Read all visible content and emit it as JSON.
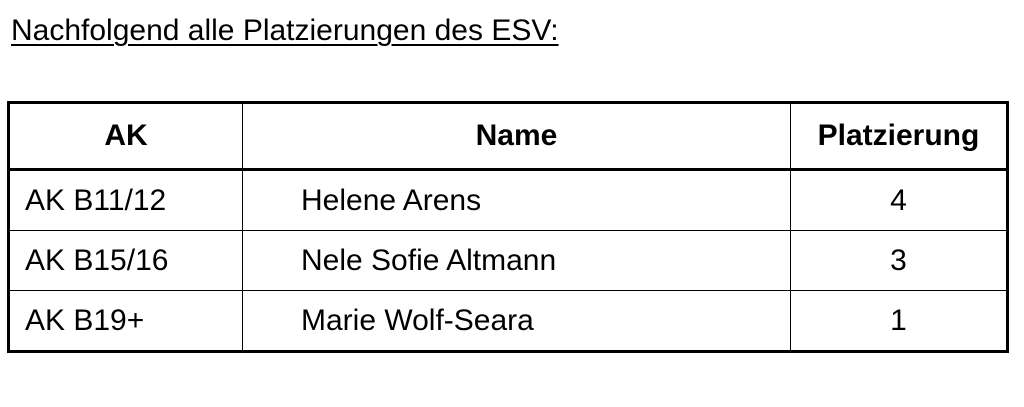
{
  "title": "Nachfolgend alle Platzierungen des ESV:",
  "table": {
    "headers": [
      "AK",
      "Name",
      "Platzierung"
    ],
    "rows": [
      [
        "AK B11/12",
        "Helene Arens",
        "4"
      ],
      [
        "AK B15/16",
        "Nele Sofie Altmann",
        "3"
      ],
      [
        "AK B19+",
        "Marie Wolf-Seara",
        "1"
      ]
    ]
  }
}
